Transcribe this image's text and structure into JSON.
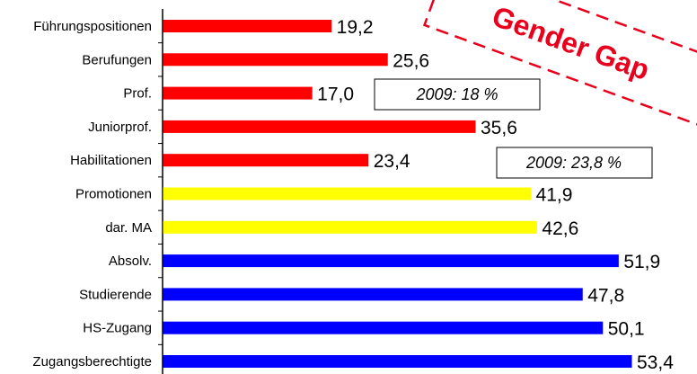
{
  "chart_data": {
    "type": "bar",
    "orientation": "horizontal",
    "categories": [
      "Führungspositionen",
      "Berufungen",
      "Prof.",
      "Juniorprof.",
      "Habilitationen",
      "Promotionen",
      "dar. MA",
      "Absolv.",
      "Studierende",
      "HS-Zugang",
      "Zugangsberechtigte"
    ],
    "values": [
      19.2,
      25.6,
      17.0,
      35.6,
      23.4,
      41.9,
      42.6,
      51.9,
      47.8,
      50.1,
      53.4
    ],
    "value_labels": [
      "19,2",
      "25,6",
      "17,0",
      "35,6",
      "23,4",
      "41,9",
      "42,6",
      "51,9",
      "47,8",
      "50,1",
      "53,4"
    ],
    "bar_colors": [
      "#ff0000",
      "#ff0000",
      "#ff0000",
      "#ff0000",
      "#ff0000",
      "#ffff00",
      "#ffff00",
      "#0000ff",
      "#0000ff",
      "#0000ff",
      "#0000ff"
    ],
    "xlim": [
      0,
      60
    ],
    "grid": false,
    "legend": "none",
    "annotations": [
      {
        "text": "2009: 18 %",
        "category": "Prof."
      },
      {
        "text": "2009: 23,8 %",
        "category": "Habilitationen"
      }
    ],
    "stamp": {
      "text": "Gender Gap",
      "color": "#e8001c"
    }
  }
}
